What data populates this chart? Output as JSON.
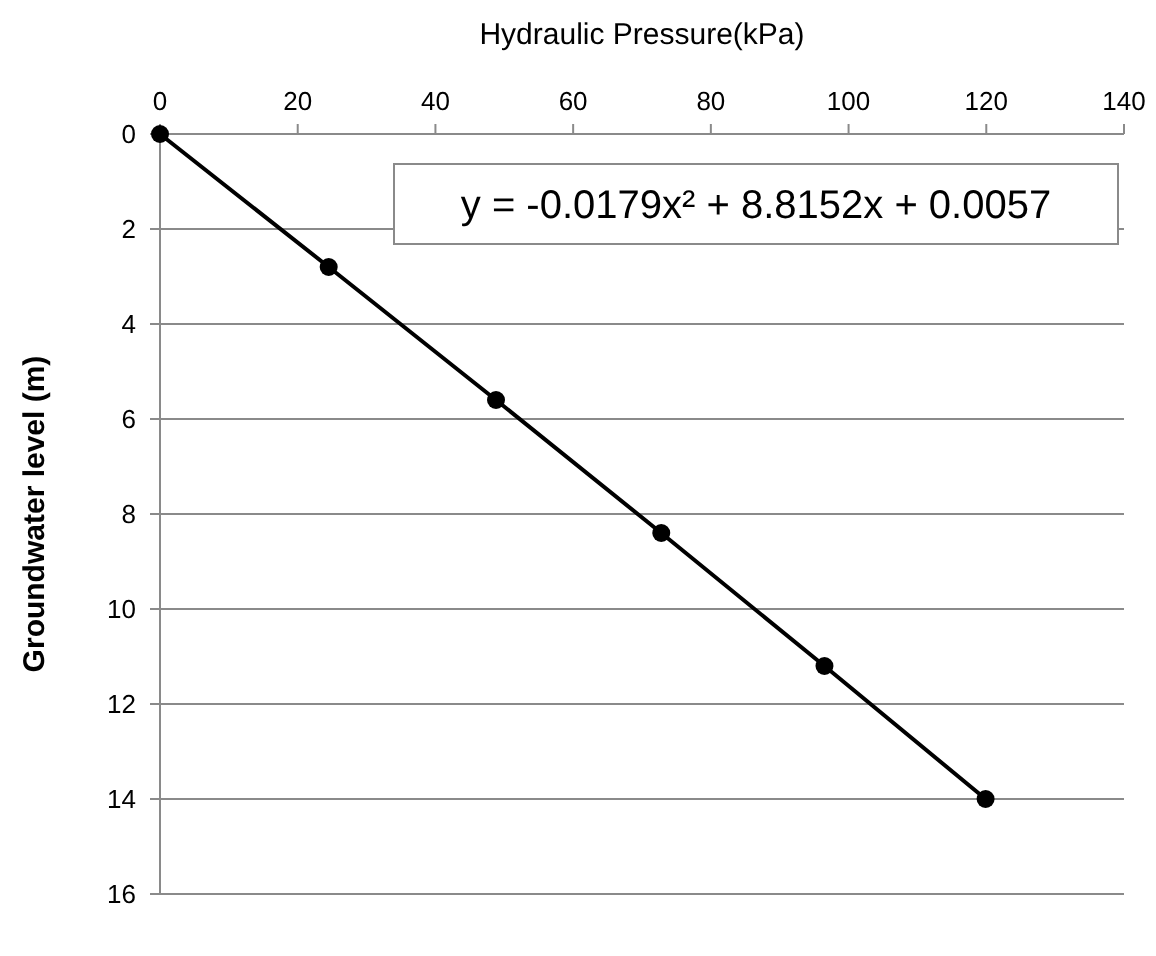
{
  "chart_data": {
    "type": "line",
    "xlabel": "Hydraulic Pressure(kPa)",
    "ylabel": "Groundwater level (m)",
    "x": [
      0,
      24.5,
      48.8,
      72.8,
      96.5,
      119.9
    ],
    "series": [
      {
        "color": "#000000",
        "values": [
          0,
          2.8,
          5.6,
          8.4,
          11.2,
          14
        ]
      }
    ],
    "xlim": [
      0,
      140
    ],
    "xticks": [
      0,
      20,
      40,
      60,
      80,
      100,
      120,
      140
    ],
    "ylim": [
      16,
      0
    ],
    "yticks": [
      0,
      2,
      4,
      6,
      8,
      10,
      12,
      14,
      16
    ],
    "grid": "y",
    "marker": "circle",
    "line_style": "solid",
    "annotations": [
      "y = -0.0179x² + 8.8152x + 0.0057"
    ]
  }
}
